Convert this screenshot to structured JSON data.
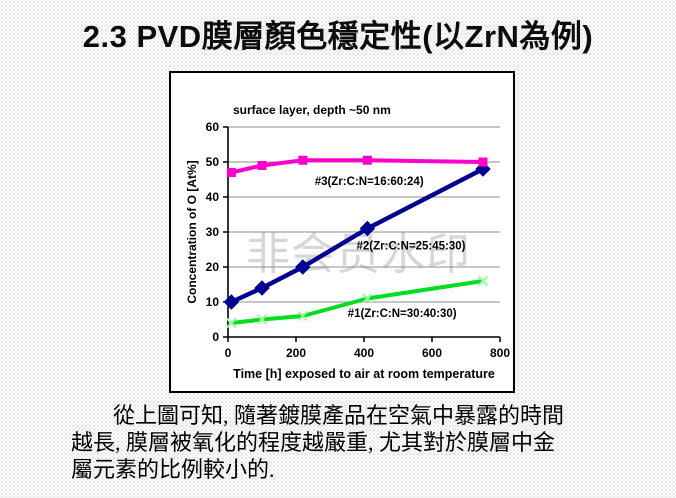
{
  "slide": {
    "title": "2.3  PVD膜層顏色穩定性(以ZrN為例)",
    "body_lines": [
      "從上圖可知, 隨著鍍膜產品在空氣中暴露的時間",
      "越長, 膜層被氧化的程度越嚴重, 尤其對於膜層中金",
      "屬元素的比例較小的."
    ]
  },
  "chart": {
    "watermark": "非会员水印"
  },
  "chart_data": {
    "type": "line",
    "title": "surface layer, depth ~50 nm",
    "xlabel": "Time [h] exposed to air at room temperature",
    "ylabel": "Concentration of O [At%]",
    "xlim": [
      0,
      800
    ],
    "ylim": [
      0,
      60
    ],
    "x_ticks": [
      0,
      200,
      400,
      600,
      800
    ],
    "y_ticks": [
      0,
      10,
      20,
      30,
      40,
      50,
      60
    ],
    "grid": "horizontal",
    "grid_color": "#8c8c8c",
    "axis_color": "#000000",
    "legend_position": "inline-labels",
    "series": [
      {
        "name": "#1(Zr:C:N=30:40:30)",
        "color": "#00dd22",
        "marker": "x",
        "marker_color": "#9dfa9d",
        "marker_size": 9,
        "line_width": 4,
        "x": [
          10,
          100,
          220,
          410,
          750
        ],
        "y": [
          4,
          5,
          6,
          11,
          16
        ],
        "label_x": 352,
        "label_y": 5.7
      },
      {
        "name": "#2(Zr:C:N=25:45:30)",
        "color": "#000090",
        "marker": "diamond",
        "marker_size": 11,
        "line_width": 4.5,
        "x": [
          10,
          100,
          220,
          410,
          750
        ],
        "y": [
          10,
          14,
          20,
          31,
          48
        ],
        "label_x": 378,
        "label_y": 25
      },
      {
        "name": "#3(Zr:C:N=16:60:24)",
        "color": "#ff00cc",
        "marker": "square",
        "marker_size": 9,
        "line_width": 4,
        "x": [
          10,
          100,
          220,
          410,
          750
        ],
        "y": [
          47,
          49,
          50.5,
          50.5,
          50
        ],
        "label_x": 255,
        "label_y": 43.5
      }
    ]
  }
}
